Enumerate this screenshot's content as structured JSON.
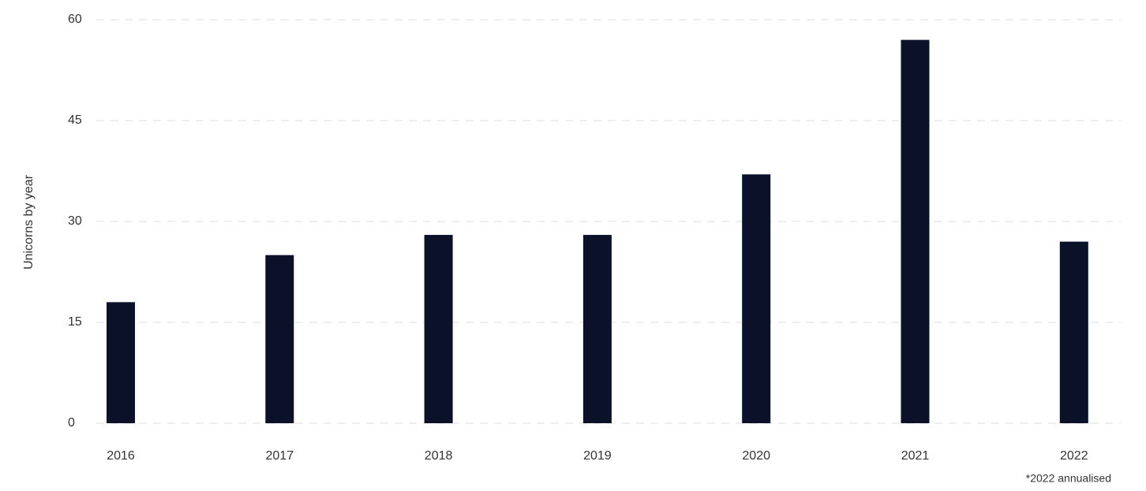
{
  "chart_data": {
    "type": "bar",
    "y_label": "Unicorns by year",
    "footnote": "*2022 annualised",
    "categories": [
      "2016",
      "2017",
      "2018",
      "2019",
      "2020",
      "2021",
      "2022"
    ],
    "values": [
      18,
      25,
      28,
      28,
      37,
      57,
      27
    ],
    "color": "#0a1128",
    "ylim": [
      0,
      60
    ],
    "yticks": [
      0,
      15,
      30,
      45,
      60
    ],
    "grid": true
  }
}
